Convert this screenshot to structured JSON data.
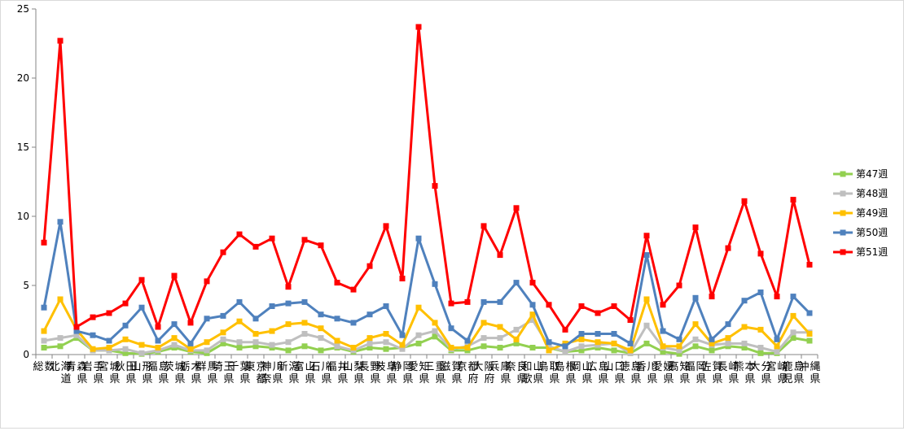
{
  "chart_data": {
    "type": "line",
    "title": "",
    "xlabel": "",
    "ylabel": "",
    "ylim": [
      0,
      25
    ],
    "yticks": [
      0,
      5,
      10,
      15,
      20,
      25
    ],
    "grid": false,
    "legend_position": "right",
    "categories": [
      "総数",
      "北海道",
      "青森県",
      "岩手県",
      "宮城県",
      "秋田県",
      "山形県",
      "福島県",
      "茨城県",
      "栃木県",
      "群馬県",
      "埼玉県",
      "千葉県",
      "東京都",
      "神奈川県",
      "新潟県",
      "富山県",
      "石川県",
      "福井県",
      "山梨県",
      "長野県",
      "岐阜県",
      "静岡県",
      "愛知県",
      "三重県",
      "滋賀県",
      "京都府",
      "大阪府",
      "兵庫県",
      "奈良県",
      "和歌山県",
      "鳥取県",
      "島根県",
      "岡山県",
      "広島県",
      "山口県",
      "徳島県",
      "香川県",
      "愛媛県",
      "高知県",
      "福岡県",
      "佐賀県",
      "長崎県",
      "熊本県",
      "大分県",
      "宮崎県",
      "鹿児島県",
      "沖縄県"
    ],
    "series": [
      {
        "name": "第47週",
        "color": "#92d050",
        "marker": "square",
        "values": [
          0.5,
          0.6,
          1.2,
          0.3,
          0.3,
          0.1,
          0.05,
          0.2,
          0.5,
          0.2,
          0.1,
          0.8,
          0.5,
          0.6,
          0.5,
          0.3,
          0.6,
          0.3,
          0.5,
          0.2,
          0.5,
          0.4,
          0.5,
          0.8,
          1.3,
          0.3,
          0.3,
          0.6,
          0.5,
          0.8,
          0.5,
          0.5,
          0.2,
          0.3,
          0.5,
          0.3,
          0.1,
          0.8,
          0.2,
          0.05,
          0.6,
          0.3,
          0.6,
          0.5,
          0.1,
          0.1,
          1.2,
          1.0
        ]
      },
      {
        "name": "第48週",
        "color": "#bfbfbf",
        "marker": "square",
        "values": [
          1.0,
          1.2,
          1.4,
          0.3,
          0.3,
          0.4,
          0.1,
          0.3,
          0.7,
          0.3,
          0.3,
          1.1,
          0.9,
          0.9,
          0.7,
          0.9,
          1.5,
          1.2,
          0.6,
          0.3,
          0.8,
          0.9,
          0.4,
          1.4,
          1.7,
          0.4,
          0.6,
          1.2,
          1.2,
          1.8,
          2.5,
          0.6,
          0.2,
          0.6,
          0.7,
          0.8,
          0.1,
          2.1,
          0.5,
          0.3,
          1.1,
          0.7,
          0.8,
          0.8,
          0.5,
          0.2,
          1.6,
          1.6
        ]
      },
      {
        "name": "第49週",
        "color": "#ffc000",
        "marker": "square",
        "values": [
          1.7,
          4.0,
          1.8,
          0.4,
          0.5,
          1.1,
          0.7,
          0.5,
          1.2,
          0.4,
          0.9,
          1.6,
          2.4,
          1.5,
          1.7,
          2.2,
          2.3,
          1.9,
          1.0,
          0.5,
          1.2,
          1.5,
          0.7,
          3.4,
          2.3,
          0.5,
          0.5,
          2.3,
          2.0,
          1.1,
          2.9,
          0.3,
          0.8,
          1.1,
          0.9,
          0.8,
          0.3,
          4.0,
          0.6,
          0.6,
          2.2,
          0.8,
          1.2,
          2.0,
          1.8,
          0.6,
          2.8,
          1.5
        ]
      },
      {
        "name": "第50週",
        "color": "#4f81bd",
        "marker": "square",
        "values": [
          3.4,
          9.6,
          1.7,
          1.4,
          1.0,
          2.1,
          3.4,
          1.0,
          2.2,
          0.8,
          2.6,
          2.8,
          3.8,
          2.6,
          3.5,
          3.7,
          3.8,
          2.9,
          2.6,
          2.3,
          2.9,
          3.5,
          1.4,
          8.4,
          5.1,
          1.9,
          1.0,
          3.8,
          3.8,
          5.2,
          3.6,
          0.9,
          0.6,
          1.5,
          1.5,
          1.5,
          0.8,
          7.2,
          1.7,
          1.1,
          4.1,
          1.1,
          2.2,
          3.9,
          4.5,
          1.1,
          4.2,
          3.0
        ]
      },
      {
        "name": "第51週",
        "color": "#ff0000",
        "marker": "square",
        "values": [
          8.1,
          22.7,
          2.0,
          2.7,
          3.0,
          3.7,
          5.4,
          2.0,
          5.7,
          2.3,
          5.3,
          7.4,
          8.7,
          7.8,
          8.4,
          4.9,
          8.3,
          7.9,
          5.2,
          4.7,
          6.4,
          9.3,
          5.5,
          23.7,
          12.2,
          3.7,
          3.8,
          9.3,
          7.2,
          10.6,
          5.2,
          3.6,
          1.8,
          3.5,
          3.0,
          3.5,
          2.5,
          8.6,
          3.6,
          5.0,
          9.2,
          4.2,
          7.7,
          11.1,
          7.3,
          4.2,
          11.2,
          6.5
        ]
      }
    ]
  }
}
